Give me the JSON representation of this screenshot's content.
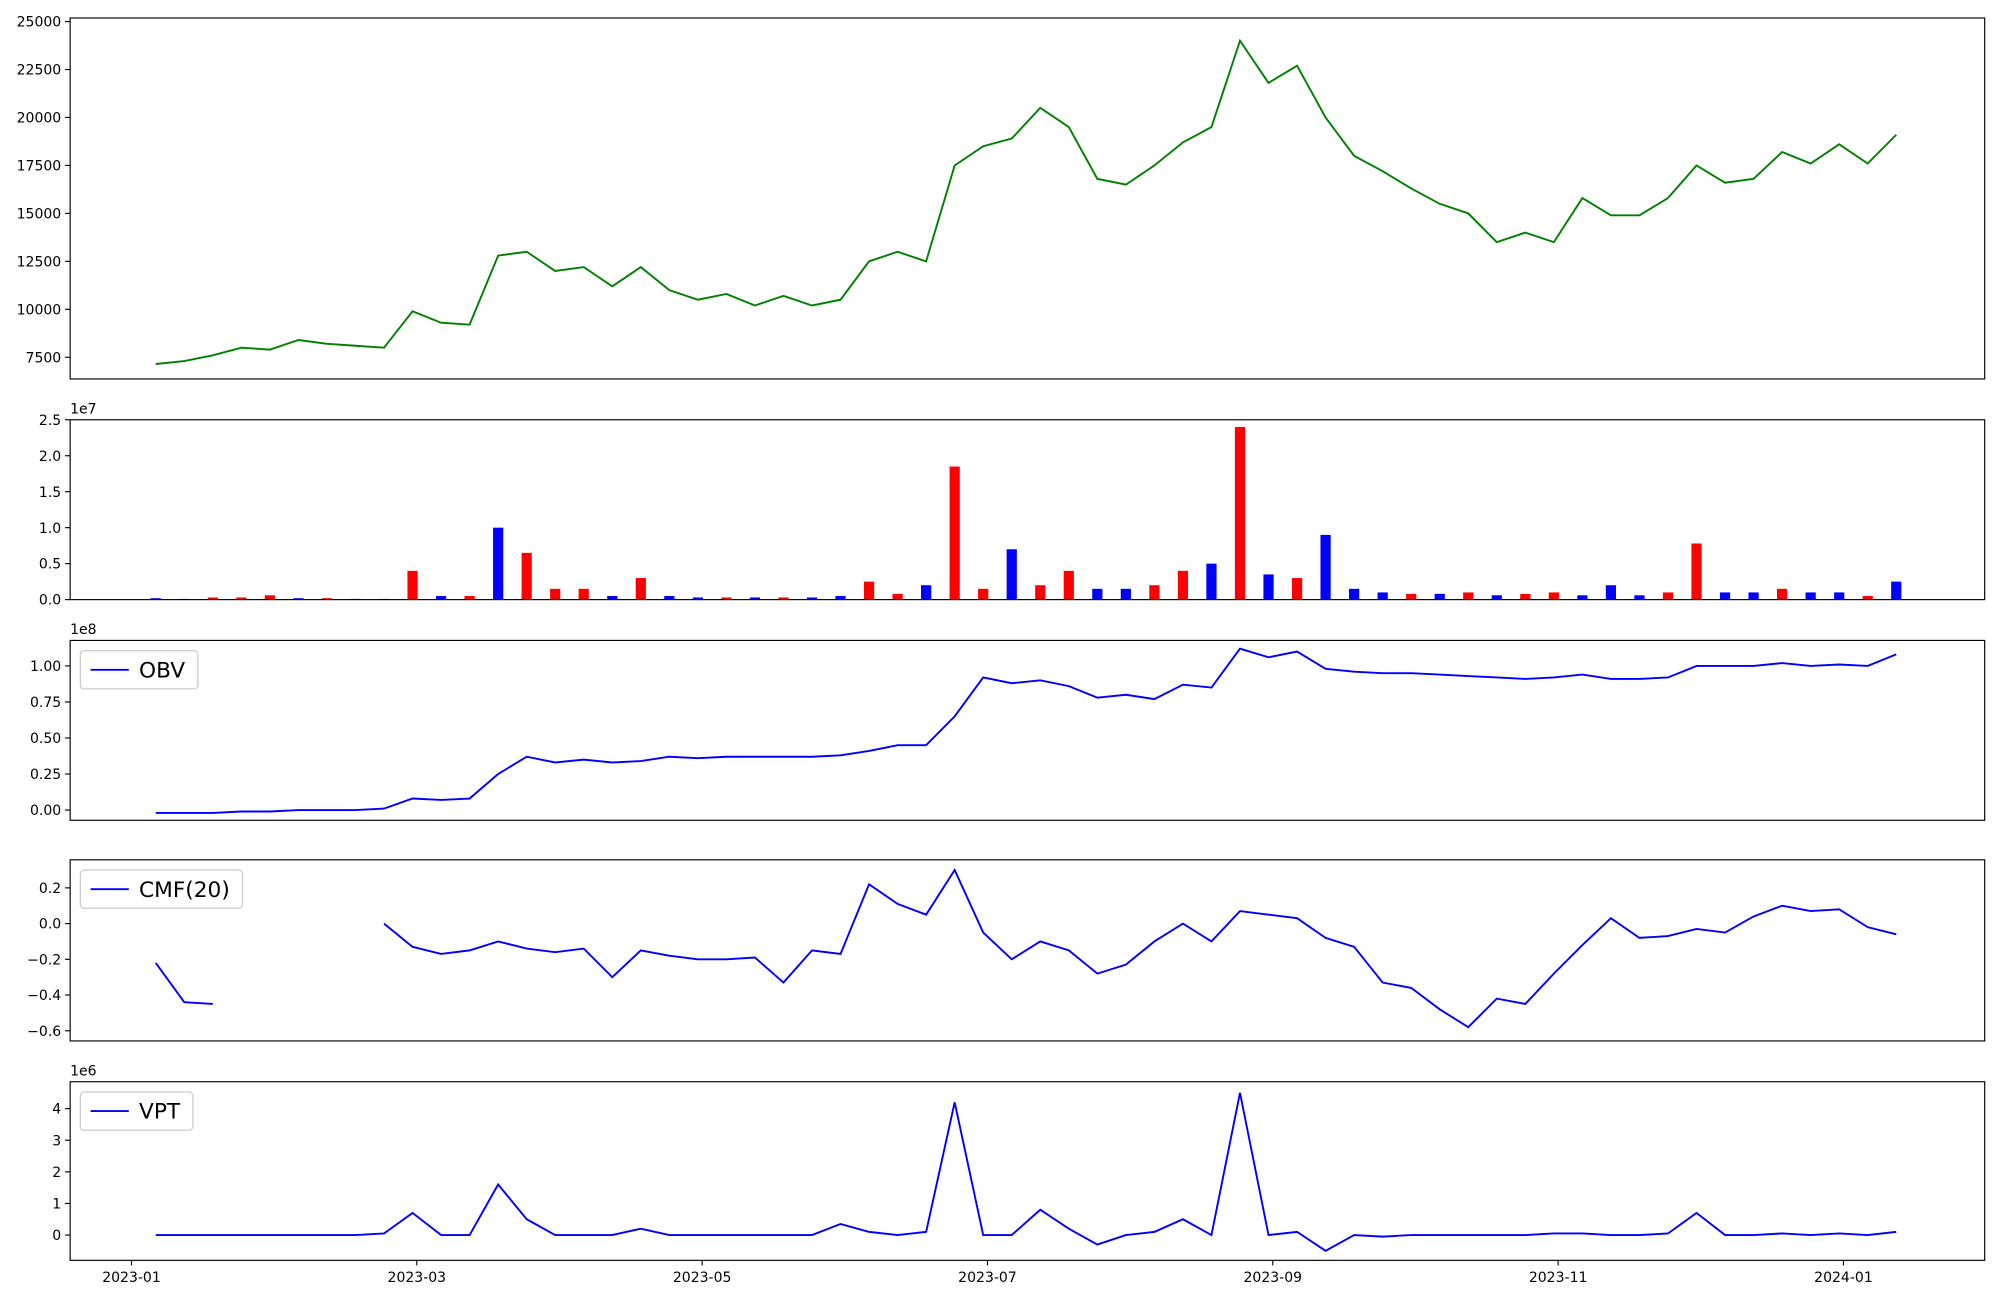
{
  "chart_data": [
    {
      "type": "line",
      "xlim": [
        -0.43,
        12.99
      ],
      "ylim": [
        6370,
        25186
      ],
      "yticks": [
        7500,
        10000,
        12500,
        15000,
        17500,
        20000,
        22500,
        25000
      ],
      "x": [
        0.17,
        0.37,
        0.57,
        0.77,
        0.97,
        1.17,
        1.37,
        1.57,
        1.77,
        1.97,
        2.17,
        2.37,
        2.57,
        2.77,
        2.97,
        3.17,
        3.37,
        3.57,
        3.77,
        3.97,
        4.17,
        4.37,
        4.57,
        4.77,
        4.97,
        5.17,
        5.37,
        5.57,
        5.77,
        5.97,
        6.17,
        6.37,
        6.57,
        6.77,
        6.97,
        7.17,
        7.37,
        7.57,
        7.77,
        7.97,
        8.17,
        8.37,
        8.57,
        8.77,
        8.97,
        9.17,
        9.37,
        9.57,
        9.77,
        9.97,
        10.17,
        10.37,
        10.57,
        10.77,
        10.97,
        11.17,
        11.37,
        11.57,
        11.77,
        11.97,
        12.17,
        12.37
      ],
      "series": [
        {
          "color": "#008000",
          "values": [
            7150,
            7300,
            7600,
            8000,
            7900,
            8400,
            8200,
            8100,
            8000,
            9900,
            9300,
            9200,
            12800,
            13000,
            12000,
            12200,
            11200,
            12200,
            11000,
            10500,
            10800,
            10200,
            10700,
            10200,
            10500,
            12500,
            13000,
            12500,
            17500,
            18500,
            18900,
            20500,
            19500,
            16800,
            16500,
            17500,
            18700,
            19500,
            24000,
            21800,
            22700,
            20000,
            18000,
            17200,
            16300,
            15500,
            15000,
            13500,
            14000,
            13500,
            15800,
            14900,
            14900,
            15800,
            17500,
            16600,
            16800,
            18200,
            17600,
            18600,
            17600,
            19100
          ]
        }
      ]
    },
    {
      "type": "bar",
      "xlim": [
        -0.43,
        12.99
      ],
      "ylim": [
        0,
        2.5
      ],
      "offset_label": "1e7",
      "yticks": [
        {
          "value": 0,
          "label": "0.0"
        },
        0.5,
        {
          "value": 1,
          "label": "1.0"
        },
        1.5,
        {
          "value": 2,
          "label": "2.0"
        },
        2.5
      ],
      "x": [
        0.17,
        0.37,
        0.57,
        0.77,
        0.97,
        1.17,
        1.37,
        1.57,
        1.77,
        1.97,
        2.17,
        2.37,
        2.57,
        2.77,
        2.97,
        3.17,
        3.37,
        3.57,
        3.77,
        3.97,
        4.17,
        4.37,
        4.57,
        4.77,
        4.97,
        5.17,
        5.37,
        5.57,
        5.77,
        5.97,
        6.17,
        6.37,
        6.57,
        6.77,
        6.97,
        7.17,
        7.37,
        7.57,
        7.77,
        7.97,
        8.17,
        8.37,
        8.57,
        8.77,
        8.97,
        9.17,
        9.37,
        9.57,
        9.77,
        9.97,
        10.17,
        10.37,
        10.57,
        10.77,
        10.97,
        11.17,
        11.37,
        11.57,
        11.77,
        11.97,
        12.17,
        12.37
      ],
      "values": [
        0.02,
        0.01,
        0.03,
        0.03,
        0.06,
        0.02,
        0.02,
        0.01,
        0.01,
        0.4,
        0.05,
        0.05,
        1.0,
        0.65,
        0.15,
        0.15,
        0.05,
        0.3,
        0.05,
        0.03,
        0.03,
        0.03,
        0.03,
        0.03,
        0.05,
        0.25,
        0.08,
        0.2,
        1.85,
        0.15,
        0.7,
        0.2,
        0.4,
        0.15,
        0.15,
        0.2,
        0.4,
        0.5,
        2.4,
        0.35,
        0.3,
        0.9,
        0.15,
        0.1,
        0.08,
        0.08,
        0.1,
        0.06,
        0.08,
        0.1,
        0.06,
        0.2,
        0.06,
        0.1,
        0.78,
        0.1,
        0.1,
        0.15,
        0.1,
        0.1,
        0.05,
        0.25
      ],
      "colors": [
        "blue",
        "blue",
        "red",
        "red",
        "red",
        "blue",
        "red",
        "blue",
        "red",
        "red",
        "blue",
        "red",
        "blue",
        "red",
        "red",
        "red",
        "blue",
        "red",
        "blue",
        "blue",
        "red",
        "blue",
        "red",
        "blue",
        "blue",
        "red",
        "red",
        "blue",
        "red",
        "red",
        "blue",
        "red",
        "red",
        "blue",
        "blue",
        "red",
        "red",
        "blue",
        "red",
        "blue",
        "red",
        "blue",
        "blue",
        "blue",
        "red",
        "blue",
        "red",
        "blue",
        "red",
        "red",
        "blue",
        "blue",
        "blue",
        "red",
        "red",
        "blue",
        "blue",
        "red",
        "blue",
        "blue",
        "red",
        "blue"
      ]
    },
    {
      "type": "line",
      "xlim": [
        -0.43,
        12.99
      ],
      "ylim": [
        -0.071,
        1.177
      ],
      "offset_label": "1e8",
      "legend": "upper left",
      "yticks": [
        {
          "value": 0,
          "label": "0.00"
        },
        0.25,
        {
          "value": 0.5,
          "label": "0.50"
        },
        0.75,
        {
          "value": 1,
          "label": "1.00"
        }
      ],
      "x": [
        0.17,
        0.37,
        0.57,
        0.77,
        0.97,
        1.17,
        1.37,
        1.57,
        1.77,
        1.97,
        2.17,
        2.37,
        2.57,
        2.77,
        2.97,
        3.17,
        3.37,
        3.57,
        3.77,
        3.97,
        4.17,
        4.37,
        4.57,
        4.77,
        4.97,
        5.17,
        5.37,
        5.57,
        5.77,
        5.97,
        6.17,
        6.37,
        6.57,
        6.77,
        6.97,
        7.17,
        7.37,
        7.57,
        7.77,
        7.97,
        8.17,
        8.37,
        8.57,
        8.77,
        8.97,
        9.17,
        9.37,
        9.57,
        9.77,
        9.97,
        10.17,
        10.37,
        10.57,
        10.77,
        10.97,
        11.17,
        11.37,
        11.57,
        11.77,
        11.97,
        12.17,
        12.37
      ],
      "series": [
        {
          "name": "OBV",
          "color": "#0000ff",
          "values": [
            -0.02,
            -0.02,
            -0.02,
            -0.01,
            -0.01,
            0,
            0,
            0,
            0.01,
            0.08,
            0.07,
            0.08,
            0.25,
            0.37,
            0.33,
            0.35,
            0.33,
            0.34,
            0.37,
            0.36,
            0.37,
            0.37,
            0.37,
            0.37,
            0.38,
            0.41,
            0.45,
            0.45,
            0.65,
            0.92,
            0.88,
            0.9,
            0.86,
            0.78,
            0.8,
            0.77,
            0.87,
            0.85,
            1.12,
            1.06,
            1.1,
            0.98,
            0.96,
            0.95,
            0.95,
            0.94,
            0.93,
            0.92,
            0.91,
            0.92,
            0.94,
            0.91,
            0.91,
            0.92,
            1.0,
            1.0,
            1.0,
            1.02,
            1.0,
            1.01,
            1.0,
            1.08
          ]
        }
      ]
    },
    {
      "type": "line",
      "xlim": [
        -0.43,
        12.99
      ],
      "ylim": [
        -0.657,
        0.357
      ],
      "legend": "upper left",
      "yticks": [
        {
          "value": -0.6,
          "label": "−0.6"
        },
        {
          "value": -0.4,
          "label": "−0.4"
        },
        {
          "value": -0.2,
          "label": "−0.2"
        },
        {
          "value": 0,
          "label": "0.0"
        },
        0.2
      ],
      "x": [
        0.17,
        0.37,
        0.57,
        0.77,
        0.97,
        1.17,
        1.37,
        1.57,
        1.77,
        1.97,
        2.17,
        2.37,
        2.57,
        2.77,
        2.97,
        3.17,
        3.37,
        3.57,
        3.77,
        3.97,
        4.17,
        4.37,
        4.57,
        4.77,
        4.97,
        5.17,
        5.37,
        5.57,
        5.77,
        5.97,
        6.17,
        6.37,
        6.57,
        6.77,
        6.97,
        7.17,
        7.37,
        7.57,
        7.77,
        7.97,
        8.17,
        8.37,
        8.57,
        8.77,
        8.97,
        9.17,
        9.37,
        9.57,
        9.77,
        9.97,
        10.17,
        10.37,
        10.57,
        10.77,
        10.97,
        11.17,
        11.37,
        11.57,
        11.77,
        11.97,
        12.17,
        12.37
      ],
      "series": [
        {
          "name": "CMF(20)",
          "color": "#0000ff",
          "values": [
            -0.22,
            -0.44,
            -0.45,
            null,
            null,
            null,
            null,
            null,
            0.0,
            -0.13,
            -0.17,
            -0.15,
            -0.1,
            -0.14,
            -0.16,
            -0.14,
            -0.3,
            -0.15,
            -0.18,
            -0.2,
            -0.2,
            -0.19,
            -0.33,
            -0.15,
            -0.17,
            0.22,
            0.11,
            0.05,
            0.3,
            -0.05,
            -0.2,
            -0.1,
            -0.15,
            -0.28,
            -0.23,
            -0.1,
            0.0,
            -0.1,
            0.07,
            0.05,
            0.03,
            -0.08,
            -0.13,
            -0.33,
            -0.36,
            -0.48,
            -0.58,
            -0.42,
            -0.45,
            -0.28,
            -0.12,
            0.03,
            -0.08,
            -0.07,
            -0.03,
            -0.05,
            0.04,
            0.1,
            0.07,
            0.08,
            -0.02,
            -0.06
          ]
        }
      ]
    },
    {
      "type": "line",
      "xlim": [
        -0.43,
        12.99
      ],
      "ylim": [
        -0.8,
        4.85
      ],
      "offset_label": "1e6",
      "legend": "upper left",
      "yticks": [
        0,
        1,
        2,
        3,
        4
      ],
      "xticks": [
        {
          "value": 0,
          "label": "2023-01"
        },
        {
          "value": 2,
          "label": "2023-03"
        },
        {
          "value": 4,
          "label": "2023-05"
        },
        {
          "value": 6,
          "label": "2023-07"
        },
        {
          "value": 8,
          "label": "2023-09"
        },
        {
          "value": 10,
          "label": "2023-11"
        },
        {
          "value": 12,
          "label": "2024-01"
        }
      ],
      "x": [
        0.17,
        0.37,
        0.57,
        0.77,
        0.97,
        1.17,
        1.37,
        1.57,
        1.77,
        1.97,
        2.17,
        2.37,
        2.57,
        2.77,
        2.97,
        3.17,
        3.37,
        3.57,
        3.77,
        3.97,
        4.17,
        4.37,
        4.57,
        4.77,
        4.97,
        5.17,
        5.37,
        5.57,
        5.77,
        5.97,
        6.17,
        6.37,
        6.57,
        6.77,
        6.97,
        7.17,
        7.37,
        7.57,
        7.77,
        7.97,
        8.17,
        8.37,
        8.57,
        8.77,
        8.97,
        9.17,
        9.37,
        9.57,
        9.77,
        9.97,
        10.17,
        10.37,
        10.57,
        10.77,
        10.97,
        11.17,
        11.37,
        11.57,
        11.77,
        11.97,
        12.17,
        12.37
      ],
      "series": [
        {
          "name": "VPT",
          "color": "#0000ff",
          "values": [
            0,
            0,
            0,
            0,
            0,
            0,
            0,
            0,
            0.05,
            0.7,
            0,
            0,
            1.6,
            0.5,
            0,
            0,
            0,
            0.2,
            0,
            0,
            0,
            0,
            0,
            0,
            0.35,
            0.1,
            0,
            0.1,
            4.2,
            0,
            0,
            0.8,
            0.2,
            -0.3,
            0,
            0.1,
            0.5,
            0,
            4.5,
            0,
            0.1,
            -0.5,
            0,
            -0.05,
            0,
            0,
            0,
            0,
            0,
            0.05,
            0.05,
            0,
            0,
            0.05,
            0.7,
            0,
            0,
            0.05,
            0,
            0.05,
            0,
            0.1
          ]
        }
      ]
    }
  ]
}
